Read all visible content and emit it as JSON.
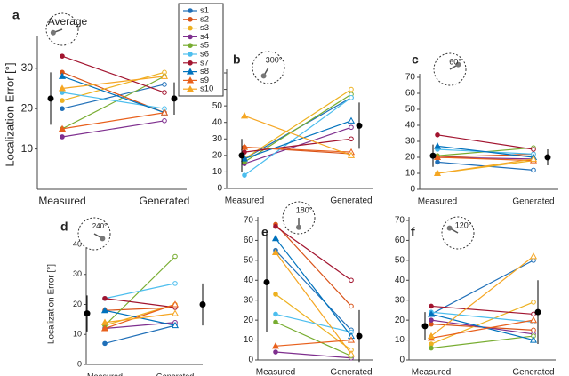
{
  "chart_data": [
    {
      "type": "line",
      "panel": "a",
      "inset_label": "Average",
      "y_label": "Localization Error [°]",
      "categories": [
        "Measured",
        "Generated"
      ],
      "ylim": [
        0,
        37
      ],
      "yticks": [
        10,
        20,
        30
      ],
      "series": [
        {
          "name": "s1",
          "color": "#1f6fb8",
          "marker": "circle",
          "values": [
            20,
            26
          ]
        },
        {
          "name": "s2",
          "color": "#d95319",
          "marker": "circle",
          "values": [
            29,
            19
          ]
        },
        {
          "name": "s3",
          "color": "#edb120",
          "marker": "circle",
          "values": [
            22,
            29
          ]
        },
        {
          "name": "s4",
          "color": "#7e2f8e",
          "marker": "circle",
          "values": [
            13,
            17
          ]
        },
        {
          "name": "s5",
          "color": "#77ac30",
          "marker": "circle",
          "values": [
            15,
            28
          ]
        },
        {
          "name": "s6",
          "color": "#4dbeee",
          "marker": "circle",
          "values": [
            24,
            20
          ]
        },
        {
          "name": "s7",
          "color": "#a2142f",
          "marker": "circle",
          "values": [
            33,
            24
          ]
        },
        {
          "name": "s8",
          "color": "#0072bd",
          "marker": "triangle",
          "values": [
            28,
            19
          ]
        },
        {
          "name": "s9",
          "color": "#e8601c",
          "marker": "triangle",
          "values": [
            15,
            19
          ]
        },
        {
          "name": "s10",
          "color": "#f5a623",
          "marker": "triangle",
          "values": [
            25,
            28
          ]
        }
      ],
      "mean": {
        "values": [
          22.5,
          22.5
        ],
        "errors": [
          6.5,
          4
        ]
      }
    },
    {
      "type": "line",
      "panel": "b",
      "inset_label": "300°",
      "categories": [
        "Measured",
        "Generated"
      ],
      "ylim": [
        0,
        70
      ],
      "yticks": [
        0,
        10,
        20,
        30,
        40,
        50,
        60,
        70
      ],
      "series": [
        {
          "values": [
            18,
            55
          ]
        },
        {
          "values": [
            25,
            21
          ]
        },
        {
          "values": [
            18,
            60
          ]
        },
        {
          "values": [
            15,
            37
          ]
        },
        {
          "values": [
            16,
            57
          ]
        },
        {
          "values": [
            8,
            55
          ]
        },
        {
          "values": [
            22,
            30
          ]
        },
        {
          "values": [
            18,
            41
          ]
        },
        {
          "values": [
            25,
            22
          ]
        },
        {
          "values": [
            44,
            20
          ]
        }
      ],
      "mean": {
        "values": [
          20,
          38
        ],
        "errors": [
          10,
          14
        ]
      }
    },
    {
      "type": "line",
      "panel": "c",
      "inset_label": "60°",
      "categories": [
        "Measured",
        "Generated"
      ],
      "ylim": [
        0,
        70
      ],
      "yticks": [
        0,
        10,
        20,
        30,
        40,
        50,
        60,
        70
      ],
      "series": [
        {
          "values": [
            17,
            12
          ]
        },
        {
          "values": [
            20,
            22
          ]
        },
        {
          "values": [
            10,
            18
          ]
        },
        {
          "values": [
            20,
            19
          ]
        },
        {
          "values": [
            21,
            26
          ]
        },
        {
          "values": [
            25,
            22
          ]
        },
        {
          "values": [
            34,
            25
          ]
        },
        {
          "values": [
            27,
            20
          ]
        },
        {
          "values": [
            20,
            18
          ]
        },
        {
          "values": [
            10,
            19
          ]
        }
      ],
      "mean": {
        "values": [
          21,
          20
        ],
        "errors": [
          7,
          5
        ]
      }
    },
    {
      "type": "line",
      "panel": "d",
      "inset_label": "240°",
      "y_label": "Localization Error [°]",
      "categories": [
        "Measured",
        "Generated"
      ],
      "ylim": [
        0,
        40
      ],
      "yticks": [
        0,
        10,
        20,
        30,
        40
      ],
      "series": [
        {
          "values": [
            7,
            13
          ]
        },
        {
          "values": [
            18,
            19
          ]
        },
        {
          "values": [
            13,
            20
          ]
        },
        {
          "values": [
            12,
            14
          ]
        },
        {
          "values": [
            13,
            36
          ]
        },
        {
          "values": [
            22,
            27
          ]
        },
        {
          "values": [
            22,
            19
          ]
        },
        {
          "values": [
            18,
            13
          ]
        },
        {
          "values": [
            12,
            20
          ]
        },
        {
          "values": [
            14,
            17
          ]
        }
      ],
      "mean": {
        "values": [
          17,
          20
        ],
        "errors": [
          6,
          7
        ]
      }
    },
    {
      "type": "line",
      "panel": "e",
      "inset_label": "180°",
      "categories": [
        "Measured",
        "Generated"
      ],
      "ylim": [
        0,
        70
      ],
      "yticks": [
        0,
        10,
        20,
        30,
        40,
        50,
        60,
        70
      ],
      "series": [
        {
          "values": [
            55,
            15
          ]
        },
        {
          "values": [
            68,
            27
          ]
        },
        {
          "values": [
            33,
            5
          ]
        },
        {
          "values": [
            4,
            1
          ]
        },
        {
          "values": [
            19,
            2
          ]
        },
        {
          "values": [
            23,
            14
          ]
        },
        {
          "values": [
            67,
            40
          ]
        },
        {
          "values": [
            61,
            12
          ]
        },
        {
          "values": [
            7,
            10
          ]
        },
        {
          "values": [
            54,
            3
          ]
        }
      ],
      "mean": {
        "values": [
          39,
          12
        ],
        "errors": [
          25,
          13
        ]
      }
    },
    {
      "type": "line",
      "panel": "f",
      "inset_label": "120°",
      "categories": [
        "Measured",
        "Generated"
      ],
      "ylim": [
        0,
        70
      ],
      "yticks": [
        0,
        10,
        20,
        30,
        40,
        50,
        60,
        70
      ],
      "series": [
        {
          "values": [
            23,
            50
          ]
        },
        {
          "values": [
            18,
            15
          ]
        },
        {
          "values": [
            8,
            29
          ]
        },
        {
          "values": [
            20,
            13
          ]
        },
        {
          "values": [
            6,
            12
          ]
        },
        {
          "values": [
            24,
            19
          ]
        },
        {
          "values": [
            27,
            23
          ]
        },
        {
          "values": [
            23,
            10
          ]
        },
        {
          "values": [
            11,
            20
          ]
        },
        {
          "values": [
            12,
            52
          ]
        }
      ],
      "mean": {
        "values": [
          17,
          24
        ],
        "errors": [
          7,
          16
        ]
      }
    }
  ]
}
